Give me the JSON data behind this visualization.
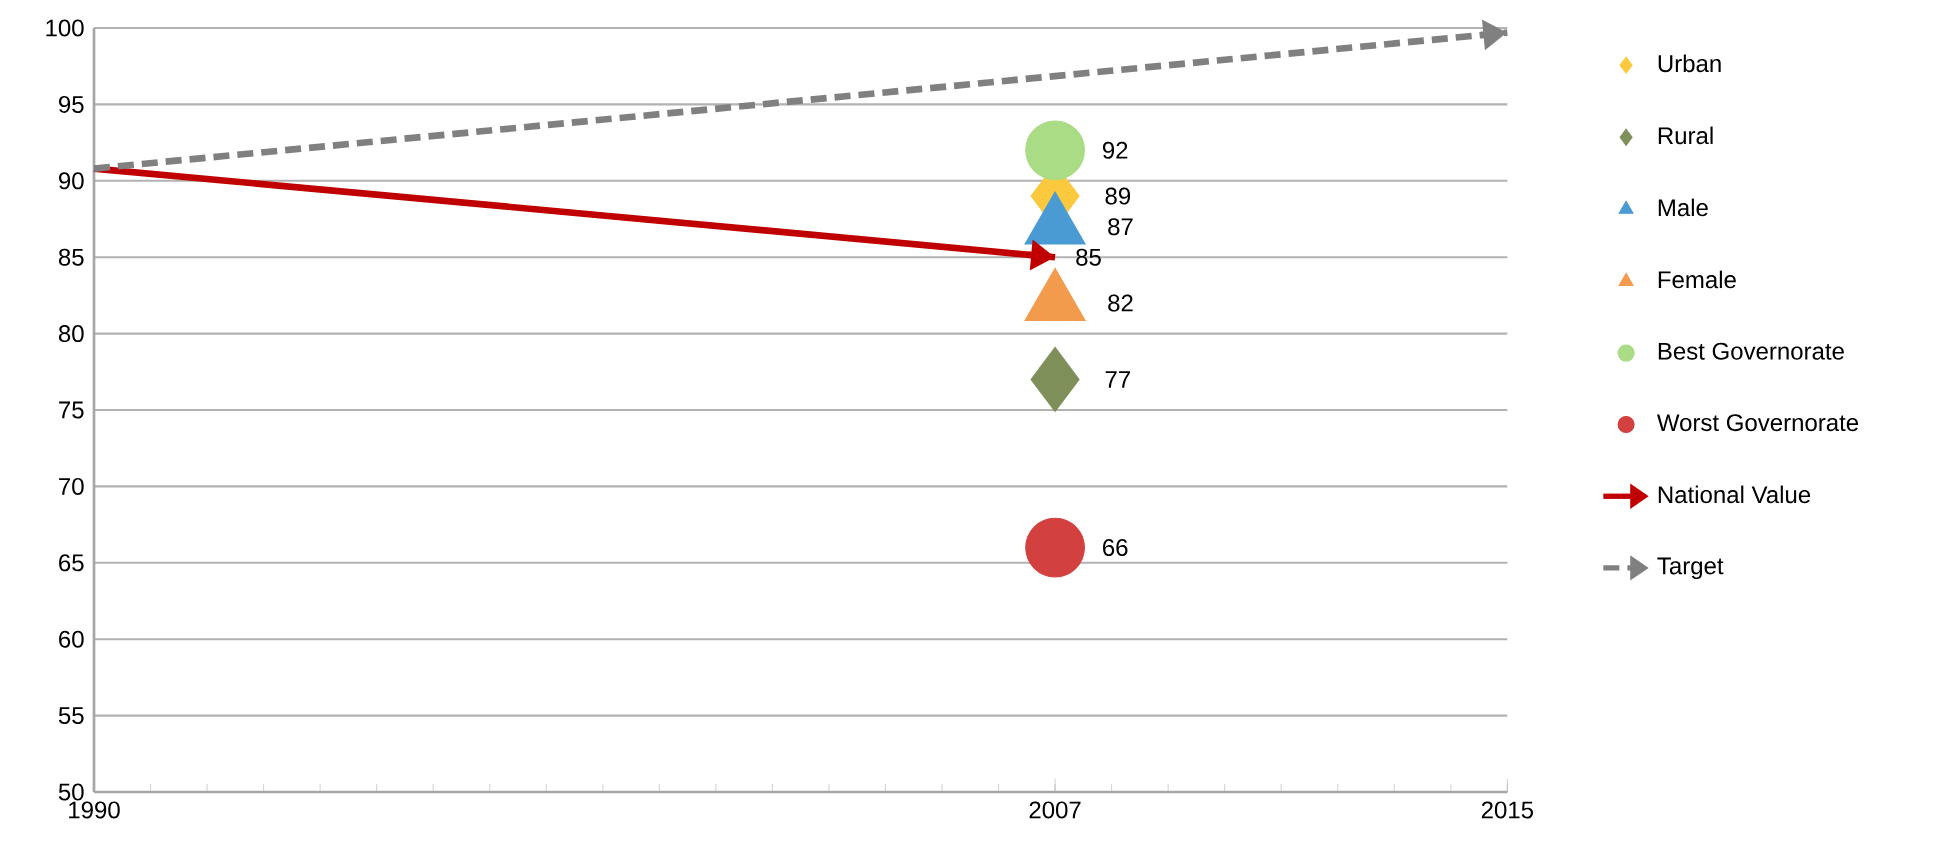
{
  "chart_data": {
    "type": "scatter",
    "xlim": [
      1990,
      2015
    ],
    "xticks": [
      1990,
      2007,
      2015
    ],
    "ylim": [
      50,
      100
    ],
    "yticks": [
      50,
      55,
      60,
      65,
      70,
      75,
      80,
      85,
      90,
      95,
      100
    ],
    "grid": "y",
    "legend": "right",
    "series": [
      {
        "name": "Urban",
        "marker": "diamond",
        "color": "#fbc93d",
        "x": [
          2007
        ],
        "values": [
          89
        ],
        "value_labels": [
          "89"
        ]
      },
      {
        "name": "Rural",
        "marker": "diamond",
        "color": "#7f8f5a",
        "x": [
          2007
        ],
        "values": [
          77
        ],
        "value_labels": [
          "77"
        ]
      },
      {
        "name": "Male",
        "marker": "triangle",
        "color": "#4a9bd4",
        "x": [
          2007
        ],
        "values": [
          87
        ],
        "value_labels": [
          "87"
        ]
      },
      {
        "name": "Female",
        "marker": "triangle",
        "color": "#f29b4c",
        "x": [
          2007
        ],
        "values": [
          82
        ],
        "value_labels": [
          "82"
        ]
      },
      {
        "name": "Best Governorate",
        "marker": "circle",
        "color": "#a9dc84",
        "x": [
          2007
        ],
        "values": [
          92
        ],
        "value_labels": [
          "92"
        ]
      },
      {
        "name": "Worst Governorate",
        "marker": "circle",
        "color": "#d2413f",
        "x": [
          2007
        ],
        "values": [
          66
        ],
        "value_labels": [
          "66"
        ]
      },
      {
        "name": "National Value",
        "type": "line",
        "line_style": "solid",
        "color": "#c00000",
        "x": [
          1990,
          2007
        ],
        "values": [
          90.8,
          85
        ],
        "value_labels": [
          null,
          "85"
        ]
      },
      {
        "name": "Target",
        "type": "line",
        "line_style": "dashed",
        "color": "#808080",
        "x": [
          1990,
          2015
        ],
        "values": [
          90.8,
          99.7
        ]
      }
    ]
  }
}
